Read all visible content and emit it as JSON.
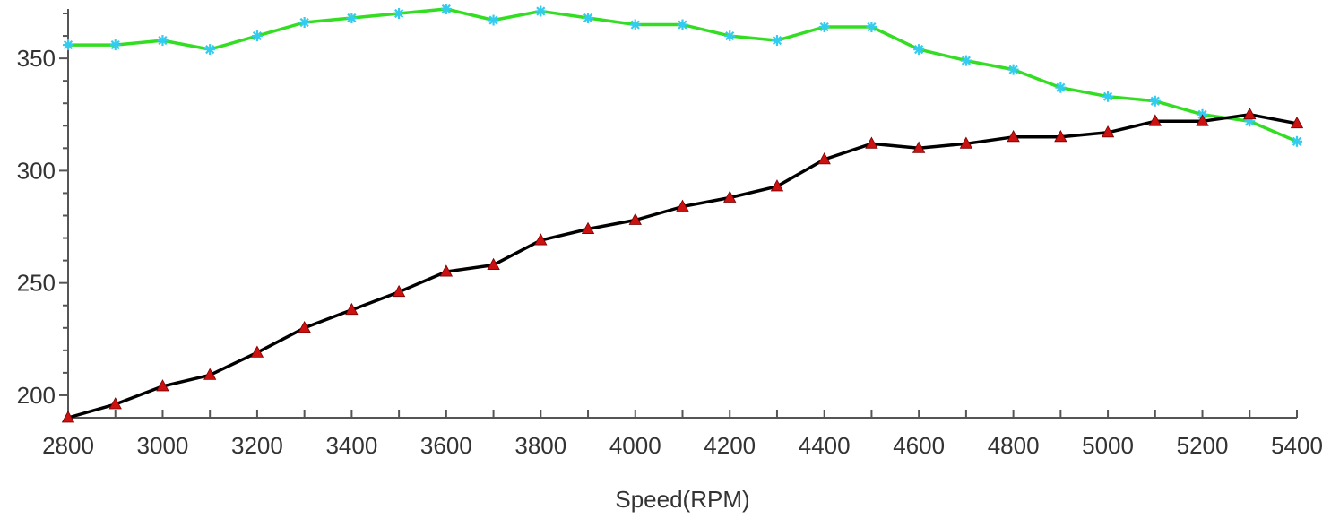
{
  "chart_data": {
    "type": "line",
    "title": "",
    "xlabel": "Speed(RPM)",
    "ylabel": "",
    "xlim": [
      2800,
      5400
    ],
    "ylim": [
      190,
      372
    ],
    "x_ticks": [
      2800,
      3000,
      3200,
      3400,
      3600,
      3800,
      4000,
      4200,
      4400,
      4600,
      4800,
      5000,
      5200,
      5400
    ],
    "y_ticks": [
      200,
      250,
      300,
      350
    ],
    "grid": false,
    "legend": "none",
    "x": [
      2800,
      2900,
      3000,
      3100,
      3200,
      3300,
      3400,
      3500,
      3600,
      3700,
      3800,
      3900,
      4000,
      4100,
      4200,
      4300,
      4400,
      4500,
      4600,
      4700,
      4800,
      4900,
      5000,
      5100,
      5200,
      5300,
      5400
    ],
    "series": [
      {
        "line_color": "#33dd22",
        "marker": "star",
        "marker_color": "#33ccee",
        "values": [
          356,
          356,
          358,
          354,
          360,
          366,
          368,
          370,
          372,
          367,
          371,
          368,
          365,
          365,
          360,
          358,
          364,
          364,
          354,
          349,
          345,
          337,
          333,
          331,
          325,
          322,
          313
        ]
      },
      {
        "line_color": "#000000",
        "marker": "triangle",
        "marker_color": "#cc1111",
        "values": [
          190,
          196,
          204,
          209,
          219,
          230,
          238,
          246,
          255,
          258,
          269,
          274,
          278,
          284,
          288,
          293,
          305,
          312,
          310,
          312,
          315,
          315,
          317,
          322,
          322,
          325,
          321
        ]
      }
    ]
  }
}
